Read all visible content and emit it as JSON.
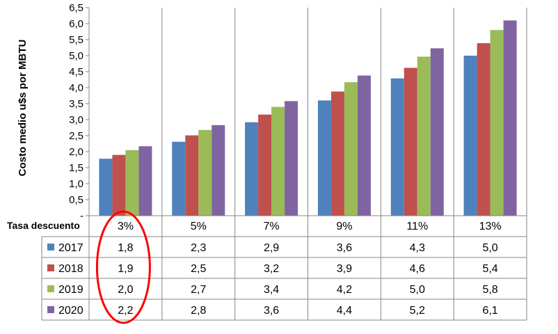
{
  "chart_data": {
    "type": "bar",
    "ylabel": "Costo medio u$s por MBTU",
    "table_header_label": "Tasa descuento",
    "categories": [
      "3%",
      "5%",
      "7%",
      "9%",
      "11%",
      "13%"
    ],
    "series": [
      {
        "name": "2017",
        "color": "#4F81BD",
        "values": [
          1.78,
          2.31,
          2.92,
          3.6,
          4.29,
          5.0
        ],
        "labels": [
          "1,8",
          "2,3",
          "2,9",
          "3,6",
          "4,3",
          "5,0"
        ]
      },
      {
        "name": "2018",
        "color": "#C0504D",
        "values": [
          1.9,
          2.51,
          3.16,
          3.88,
          4.62,
          5.39
        ],
        "labels": [
          "1,9",
          "2,5",
          "3,2",
          "3,9",
          "4,6",
          "5,4"
        ]
      },
      {
        "name": "2019",
        "color": "#9BBB59",
        "values": [
          2.05,
          2.68,
          3.4,
          4.17,
          4.97,
          5.8
        ],
        "labels": [
          "2,0",
          "2,7",
          "3,4",
          "4,2",
          "5,0",
          "5,8"
        ]
      },
      {
        "name": "2020",
        "color": "#8064A2",
        "values": [
          2.17,
          2.83,
          3.58,
          4.38,
          5.23,
          6.1
        ],
        "labels": [
          "2,2",
          "2,8",
          "3,6",
          "4,4",
          "5,2",
          "6,1"
        ]
      }
    ],
    "ylim": [
      0,
      6.5
    ],
    "yticks": [
      0,
      0.5,
      1.0,
      1.5,
      2.0,
      2.5,
      3.0,
      3.5,
      4.0,
      4.5,
      5.0,
      5.5,
      6.0,
      6.5
    ],
    "ytick_labels": [
      "-",
      "0,5",
      "1,0",
      "1,5",
      "2,0",
      "2,5",
      "3,0",
      "3,5",
      "4,0",
      "4,5",
      "5,0",
      "5,5",
      "6,0",
      "6,5"
    ],
    "grid": "vertical category separators",
    "legend": "data table below chart",
    "annotation": {
      "type": "ellipse",
      "target_category": "3%",
      "color": "#FF0000"
    }
  }
}
